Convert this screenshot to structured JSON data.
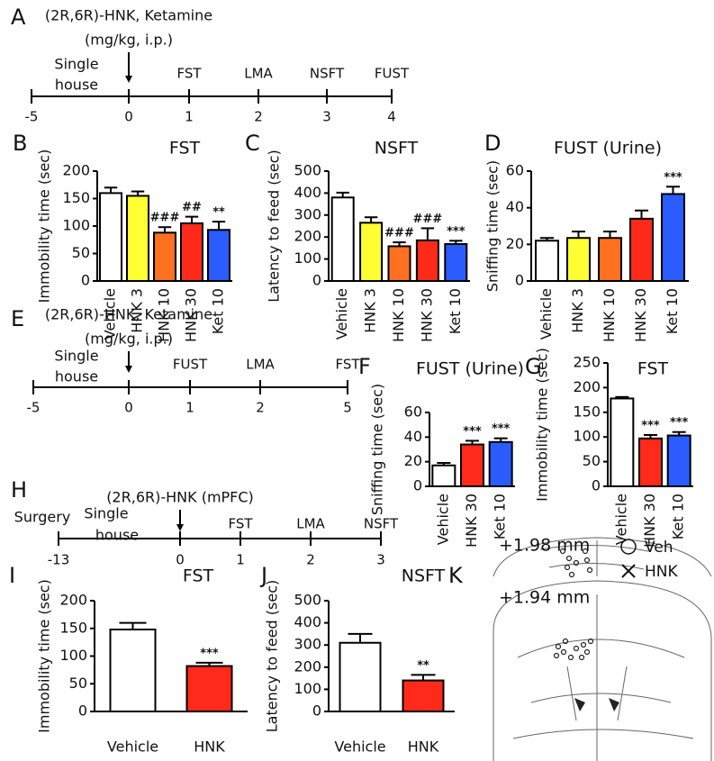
{
  "chart_data": [
    {
      "panel": "B",
      "type": "bar",
      "title": "FST",
      "y_label": "Immobility time (sec)",
      "categories": [
        "Vehicle",
        "HNK 3",
        "HNK 10",
        "HNK 30",
        "Ket 10"
      ],
      "values": [
        160,
        155,
        88,
        105,
        93
      ],
      "errors": [
        10,
        8,
        10,
        12,
        15
      ],
      "colors": [
        "#ffffff",
        "#ffff33",
        "#ff7020",
        "#ff2a1a",
        "#2a5cff"
      ],
      "annotations": [
        null,
        null,
        "###",
        "##",
        "**"
      ],
      "ylim": [
        0,
        200
      ],
      "yticks": [
        0,
        50,
        100,
        150,
        200
      ]
    },
    {
      "panel": "C",
      "type": "bar",
      "title": "NSFT",
      "y_label": "Latency to feed (sec)",
      "categories": [
        "Vehicle",
        "HNK 3",
        "HNK 10",
        "HNK 30",
        "Ket 10"
      ],
      "values": [
        380,
        265,
        158,
        185,
        168
      ],
      "errors": [
        22,
        25,
        18,
        55,
        15
      ],
      "colors": [
        "#ffffff",
        "#ffff33",
        "#ff7020",
        "#ff2a1a",
        "#2a5cff"
      ],
      "annotations": [
        null,
        null,
        "###",
        "###",
        "***"
      ],
      "ylim": [
        0,
        500
      ],
      "yticks": [
        0,
        100,
        200,
        300,
        400,
        500
      ]
    },
    {
      "panel": "D",
      "type": "bar",
      "title": "FUST (Urine)",
      "y_label": "Sniffing time (sec)",
      "categories": [
        "Vehicle",
        "HNK 3",
        "HNK 10",
        "HNK 30",
        "Ket 10"
      ],
      "values": [
        22,
        23.5,
        23.5,
        34,
        47.5
      ],
      "errors": [
        1.5,
        3.5,
        3.5,
        4.5,
        4
      ],
      "colors": [
        "#ffffff",
        "#ffff33",
        "#ff7020",
        "#ff2a1a",
        "#2a5cff"
      ],
      "annotations": [
        null,
        null,
        null,
        null,
        "***"
      ],
      "ylim": [
        0,
        60
      ],
      "yticks": [
        0,
        20,
        40,
        60
      ]
    },
    {
      "panel": "F",
      "type": "bar",
      "title": "FUST (Urine)",
      "y_label": "Sniffing time (sec)",
      "categories": [
        "Vehicle",
        "HNK 30",
        "Ket 10"
      ],
      "values": [
        17,
        34,
        36
      ],
      "errors": [
        2,
        3,
        3
      ],
      "colors": [
        "#ffffff",
        "#ff2a1a",
        "#2a5cff"
      ],
      "annotations": [
        null,
        "***",
        "***"
      ],
      "ylim": [
        0,
        60
      ],
      "yticks": [
        0,
        20,
        40,
        60
      ]
    },
    {
      "panel": "G",
      "type": "bar",
      "title": "FST",
      "y_label": "Immobility time (sec)",
      "categories": [
        "Vehicle",
        "HNK 30",
        "Ket 10"
      ],
      "values": [
        178,
        97,
        103
      ],
      "errors": [
        3,
        7,
        7
      ],
      "colors": [
        "#ffffff",
        "#ff2a1a",
        "#2a5cff"
      ],
      "annotations": [
        null,
        "***",
        "***"
      ],
      "ylim": [
        0,
        250
      ],
      "yticks": [
        0,
        50,
        100,
        150,
        200,
        250
      ]
    },
    {
      "panel": "I",
      "type": "bar",
      "title": "FST",
      "y_label": "Immobility time (sec)",
      "categories": [
        "Vehicle",
        "HNK"
      ],
      "values": [
        148,
        82
      ],
      "errors": [
        12,
        6
      ],
      "colors": [
        "#ffffff",
        "#ff2a1a"
      ],
      "annotations": [
        null,
        "***"
      ],
      "ylim": [
        0,
        200
      ],
      "yticks": [
        0,
        50,
        100,
        150,
        200
      ]
    },
    {
      "panel": "J",
      "type": "bar",
      "title": "NSFT",
      "y_label": "Latency to feed (sec)",
      "categories": [
        "Vehicle",
        "HNK"
      ],
      "values": [
        310,
        140
      ],
      "errors": [
        40,
        25
      ],
      "colors": [
        "#ffffff",
        "#ff2a1a"
      ],
      "annotations": [
        null,
        "**"
      ],
      "ylim": [
        0,
        500
      ],
      "yticks": [
        0,
        100,
        200,
        300,
        400,
        500
      ]
    }
  ],
  "timelines": [
    {
      "panel": "A",
      "drug_label": [
        "(2R,6R)-HNK, Ketamine",
        "(mg/kg, i.p.)"
      ],
      "pre_labels": [
        "Single",
        "house"
      ],
      "ticks": [
        -5,
        0,
        1,
        2,
        3,
        4
      ],
      "events": [
        null,
        null,
        "FST",
        "LMA",
        "NSFT",
        "FUST"
      ]
    },
    {
      "panel": "E",
      "drug_label": [
        "(2R,6R)-HNK, Ketamine",
        "(mg/kg, i.p.)"
      ],
      "pre_labels": [
        "Single",
        "house"
      ],
      "ticks": [
        -5,
        0,
        1,
        2,
        5
      ],
      "events": [
        null,
        null,
        "FUST",
        "LMA",
        "FST"
      ]
    },
    {
      "panel": "H",
      "drug_label": [
        "(2R,6R)-HNK (mPFC)"
      ],
      "pre_labels": [
        "Surgery",
        "Single",
        "house"
      ],
      "ticks": [
        -13,
        0,
        1,
        2,
        3
      ],
      "events": [
        null,
        null,
        "FST",
        "LMA",
        "NSFT"
      ]
    }
  ],
  "panel_k": {
    "panel": "K",
    "sections": [
      "+1.98 mm",
      "+1.94 mm"
    ],
    "legend": [
      "Veh",
      "HNK"
    ]
  }
}
